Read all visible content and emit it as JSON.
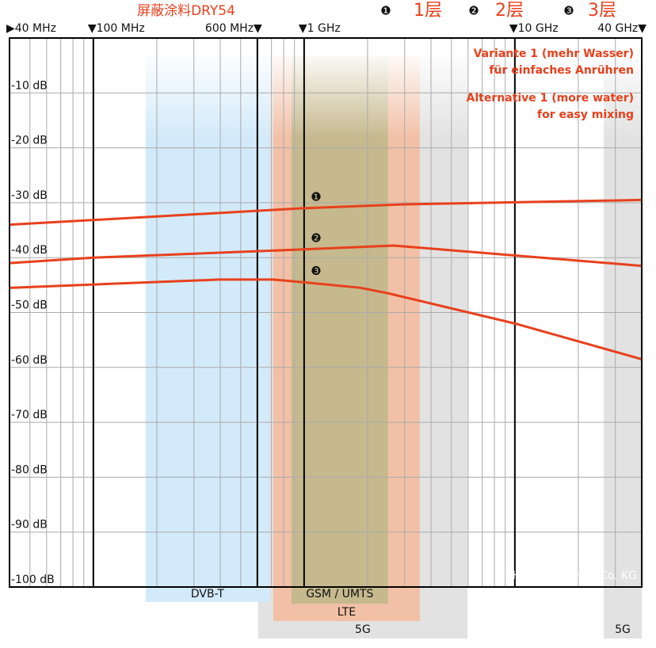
{
  "chart_data": {
    "type": "line",
    "title": "屏蔽涂料DRY54",
    "xlog": true,
    "xlim": [
      40,
      40000
    ],
    "xticks": [
      {
        "value": 40,
        "label": "▶40 MHz"
      },
      {
        "value": 100,
        "label": "▼100 MHz"
      },
      {
        "value": 600,
        "label": "600 MHz▼"
      },
      {
        "value": 1000,
        "label": "▼1 GHz"
      },
      {
        "value": 10000,
        "label": "▼10 GHz"
      },
      {
        "value": 40000,
        "label": "40 GHz▼"
      }
    ],
    "xgrid": [
      50,
      60,
      70,
      80,
      90,
      200,
      300,
      400,
      500,
      600,
      700,
      800,
      900,
      2000,
      3000,
      4000,
      5000,
      6000,
      7000,
      8000,
      9000,
      20000,
      30000
    ],
    "ylim": [
      -100,
      0
    ],
    "yticks": [
      {
        "value": -10,
        "label": "-10 dB"
      },
      {
        "value": -20,
        "label": "-20 dB"
      },
      {
        "value": -30,
        "label": "-30 dB"
      },
      {
        "value": -40,
        "label": "-40 dB"
      },
      {
        "value": -50,
        "label": "-50 dB"
      },
      {
        "value": -60,
        "label": "-60 dB"
      },
      {
        "value": -70,
        "label": "-70 dB"
      },
      {
        "value": -80,
        "label": "-80 dB"
      },
      {
        "value": -90,
        "label": "-90 dB"
      },
      {
        "value": -100,
        "label": "-100 dB"
      }
    ],
    "grid": true,
    "series": [
      {
        "name": "1层",
        "marker": "❶",
        "color": "#e8401c",
        "x": [
          40,
          1000,
          2980,
          40000
        ],
        "values": [
          -34,
          -31,
          -30.3,
          -29.5
        ]
      },
      {
        "name": "2层",
        "marker": "❷",
        "color": "#e8401c",
        "x": [
          40,
          100,
          1000,
          2660,
          40000
        ],
        "values": [
          -41,
          -40,
          -38.5,
          -37.8,
          -41.5
        ]
      },
      {
        "name": "3层",
        "marker": "❸",
        "color": "#e8401c",
        "x": [
          40,
          396,
          714,
          1000,
          1850,
          2505,
          10000,
          40000
        ],
        "values": [
          -45.5,
          -44,
          -44,
          -44.5,
          -45.5,
          -46.5,
          -52,
          -58.5
        ]
      }
    ],
    "bands": [
      {
        "label": "5G",
        "range": [
          605,
          5960
        ],
        "color": "#e2e2e2"
      },
      {
        "label": "5G",
        "range": [
          26400,
          40000
        ],
        "color": "#e2e2e2"
      },
      {
        "label": "LTE",
        "range": [
          714,
          3540
        ],
        "color": "#f2c0a6"
      },
      {
        "label": "GSM / UMTS",
        "range": [
          871,
          2500
        ],
        "color": "#c6b98e"
      },
      {
        "label": "DVB-T",
        "range": [
          177,
          684
        ],
        "color": "#d3eafa"
      }
    ],
    "annotations": [
      "Variante 1 (mehr Wasser)",
      "für einfaches Anrühren",
      "Alternative 1 (more water)",
      "for easy mixing"
    ],
    "copyright": "© YSHIELD GmbH & Co. KG"
  }
}
